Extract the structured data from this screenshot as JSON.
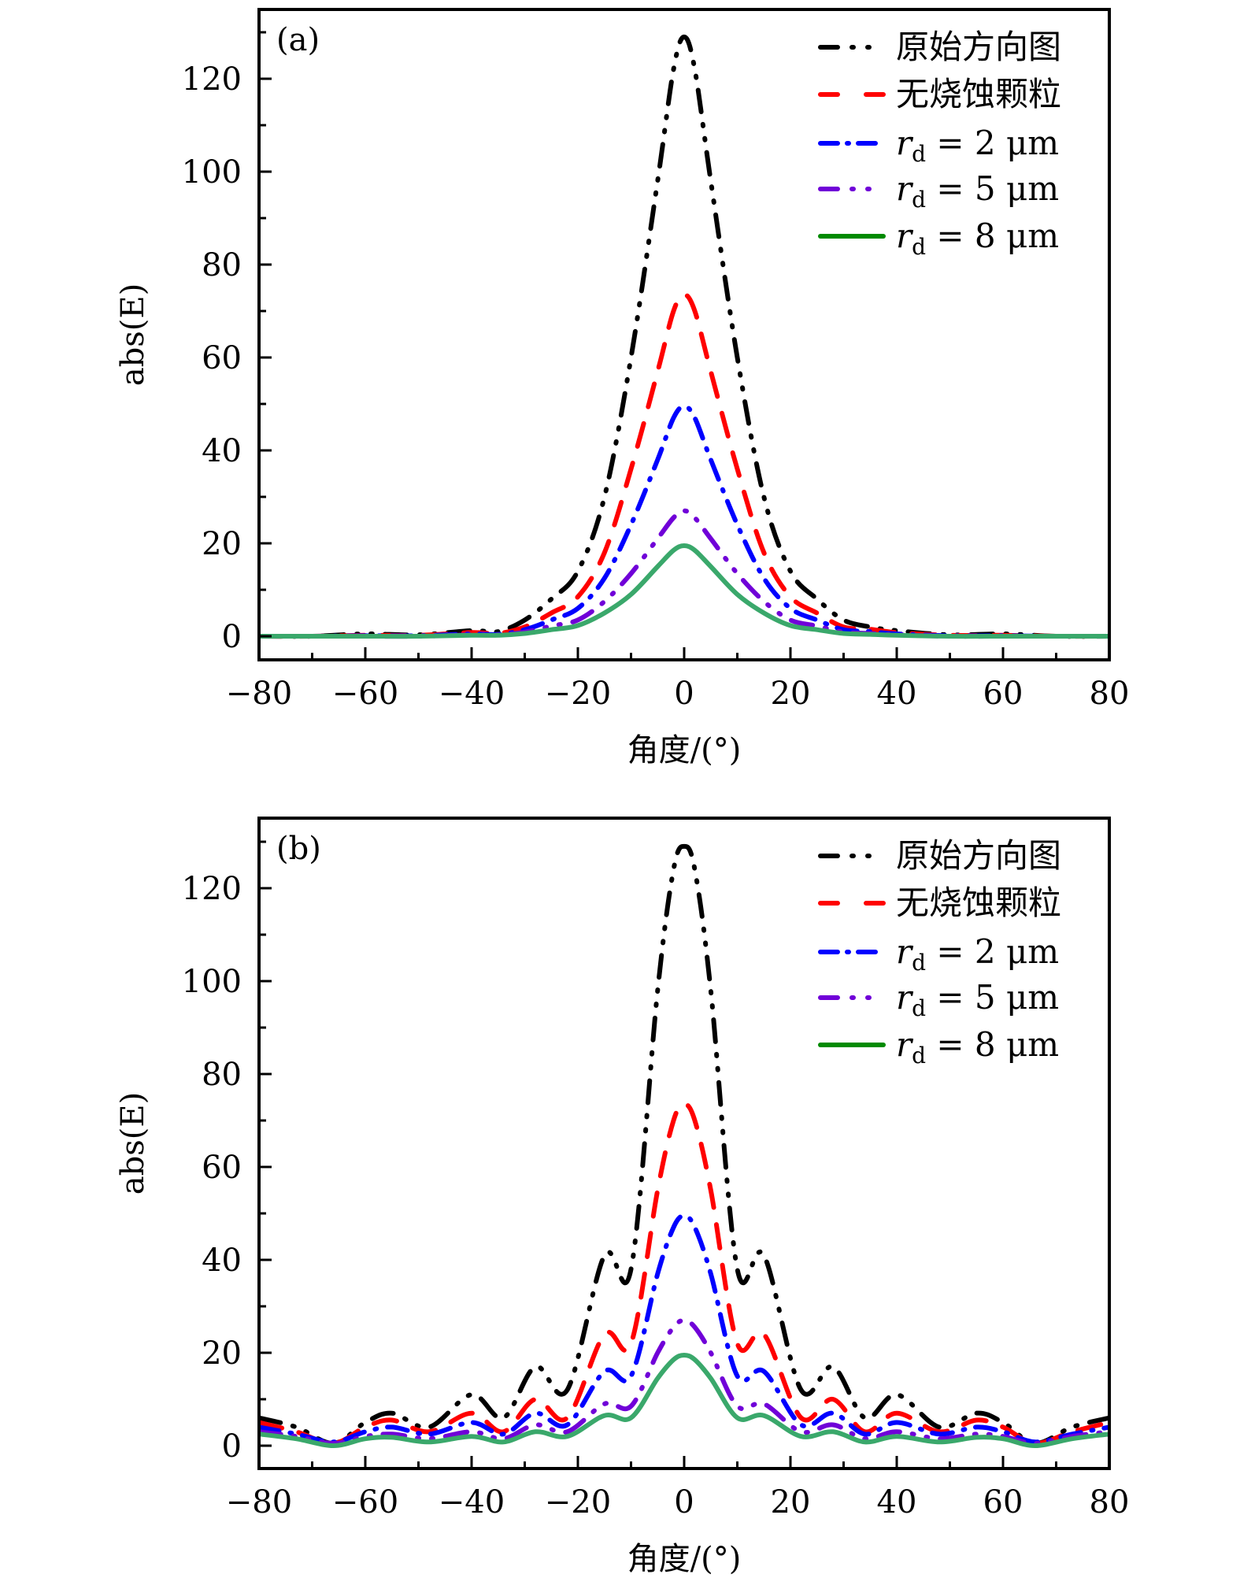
{
  "chart_data": [
    {
      "type": "line",
      "panel_label": "(a)",
      "xlabel": "角度/(°)",
      "ylabel": "abs(E)",
      "xlim": [
        -80,
        80
      ],
      "ylim": [
        0,
        135
      ],
      "xticks": [
        -80,
        -60,
        -40,
        -20,
        0,
        20,
        40,
        60,
        80
      ],
      "xtick_labels": [
        "−80",
        "−60",
        "−40",
        "−20",
        "0",
        "20",
        "40",
        "60",
        "80"
      ],
      "yticks": [
        0,
        20,
        40,
        60,
        80,
        100,
        120
      ],
      "ytick_labels": [
        "0",
        "20",
        "40",
        "60",
        "80",
        "100",
        "120"
      ],
      "legend_position": "top-right",
      "x": [
        -80,
        -70,
        -60,
        -50,
        -40,
        -35,
        -30,
        -25,
        -20,
        -15,
        -10,
        -5,
        -2,
        0,
        2,
        5,
        10,
        15,
        20,
        25,
        30,
        35,
        40,
        50,
        60,
        70,
        80
      ],
      "series": [
        {
          "name": "原始方向图",
          "color": "#000000",
          "dash": "dash-dot-dot",
          "values": [
            0,
            0,
            0.5,
            0.3,
            1.2,
            1.0,
            3.5,
            8,
            14,
            30,
            60,
            98,
            122,
            129,
            122,
            98,
            60,
            30,
            14,
            8,
            3.5,
            2.0,
            1.2,
            0.3,
            0.5,
            0,
            0
          ]
        },
        {
          "name": "无烧蚀颗粒",
          "color": "#ff0000",
          "dash": "dash",
          "values": [
            0,
            0,
            0.2,
            0.2,
            0.8,
            0.6,
            2.0,
            5,
            8.5,
            18,
            36,
            57,
            70,
            73.5,
            70,
            57,
            36,
            18,
            8.5,
            5,
            2.0,
            1.5,
            0.8,
            0.2,
            0.2,
            0,
            0
          ]
        },
        {
          "name": "r_d = 2 μm",
          "color": "#0000ff",
          "dash": "dash-dot",
          "values": [
            0,
            0,
            0.1,
            0.1,
            0.5,
            0.4,
            1.4,
            3.5,
            6,
            12.5,
            24,
            38,
            47,
            49.5,
            47,
            38,
            24,
            12.5,
            6,
            3.5,
            1.4,
            1.0,
            0.5,
            0.1,
            0.1,
            0,
            0
          ]
        },
        {
          "name": "r_d = 5 μm",
          "color": "#7000d8",
          "dash": "dash-dot-dot",
          "values": [
            0,
            0,
            0,
            0,
            0.3,
            0.3,
            0.9,
            2.2,
            3.5,
            7.5,
            13.5,
            21,
            25.5,
            27,
            25.5,
            21,
            13.5,
            7.5,
            3.5,
            2.2,
            0.9,
            0.6,
            0.3,
            0,
            0,
            0,
            0
          ]
        },
        {
          "name": "r_d = 8 μm",
          "color": "#3aa86b",
          "dash": "solid",
          "values": [
            0,
            0,
            0,
            0,
            0.2,
            0.2,
            0.6,
            1.4,
            2.3,
            5,
            9,
            15,
            18.5,
            19.5,
            18.5,
            15,
            9,
            5,
            2.3,
            1.4,
            0.6,
            0.4,
            0.2,
            0,
            0,
            0,
            0
          ]
        }
      ]
    },
    {
      "type": "line",
      "panel_label": "(b)",
      "xlabel": "角度/(°)",
      "ylabel": "abs(E)",
      "xlim": [
        -80,
        80
      ],
      "ylim": [
        0,
        135
      ],
      "xticks": [
        -80,
        -60,
        -40,
        -20,
        0,
        20,
        40,
        60,
        80
      ],
      "xtick_labels": [
        "−80",
        "−60",
        "−40",
        "−20",
        "0",
        "20",
        "40",
        "60",
        "80"
      ],
      "yticks": [
        0,
        20,
        40,
        60,
        80,
        100,
        120
      ],
      "ytick_labels": [
        "0",
        "20",
        "40",
        "60",
        "80",
        "100",
        "120"
      ],
      "legend_position": "top-right",
      "x": [
        -80,
        -73,
        -66,
        -60,
        -55,
        -48,
        -40,
        -34,
        -28,
        -22,
        -15,
        -10,
        -5,
        -2,
        0,
        2,
        5,
        10,
        15,
        22,
        28,
        34,
        40,
        48,
        55,
        60,
        66,
        73,
        80
      ],
      "series": [
        {
          "name": "原始方向图",
          "color": "#000000",
          "dash": "dash-dot-dot",
          "values": [
            6,
            4,
            0.5,
            5,
            7,
            4,
            11,
            6,
            17,
            12,
            41,
            38,
            98,
            124,
            129,
            124,
            98,
            38,
            41,
            12,
            17,
            6,
            11,
            4,
            7,
            5,
            0.5,
            4,
            6
          ]
        },
        {
          "name": "无烧蚀颗粒",
          "color": "#ff0000",
          "dash": "dash",
          "values": [
            5,
            3,
            0.5,
            4,
            5.5,
            3,
            7,
            3,
            10,
            6,
            24,
            22,
            55,
            70,
            73.5,
            70,
            55,
            22,
            24,
            6,
            10,
            3,
            7,
            3,
            5.5,
            4,
            0.5,
            3,
            5
          ]
        },
        {
          "name": "r_d = 2 μm",
          "color": "#0000ff",
          "dash": "dash-dot",
          "values": [
            4,
            2.5,
            0.8,
            3,
            4,
            2.5,
            5,
            2.5,
            7,
            4.5,
            16,
            15,
            37,
            47,
            49.5,
            47,
            37,
            15,
            16,
            4.5,
            7,
            2.5,
            5,
            2.5,
            4,
            3,
            0.8,
            2.5,
            4
          ]
        },
        {
          "name": "r_d = 5 μm",
          "color": "#7000d8",
          "dash": "dash-dot-dot",
          "values": [
            3,
            2,
            0.5,
            2,
            2.5,
            1.5,
            3,
            1.5,
            4.5,
            3,
            9,
            8.5,
            20,
            25.5,
            27,
            25.5,
            20,
            8.5,
            9,
            3,
            4.5,
            1.5,
            3,
            1.5,
            2.5,
            2,
            0.5,
            2,
            3
          ]
        },
        {
          "name": "r_d = 8 μm",
          "color": "#3aa86b",
          "dash": "solid",
          "values": [
            2.5,
            1.5,
            0,
            1.5,
            1.8,
            0.8,
            2,
            0.8,
            3,
            2,
            6.5,
            6,
            14.5,
            18.5,
            19.5,
            18.5,
            14.5,
            6,
            6.5,
            2,
            3,
            0.8,
            2,
            0.8,
            1.8,
            1.5,
            0,
            1.5,
            2.5
          ]
        }
      ]
    }
  ],
  "legend": {
    "items": [
      {
        "main": "原始方向图",
        "sub": "",
        "value": ""
      },
      {
        "main": "无烧蚀颗粒",
        "sub": "",
        "value": ""
      },
      {
        "main": "r",
        "sub": "d",
        "value": " = 2 μm"
      },
      {
        "main": "r",
        "sub": "d",
        "value": " = 5 μm"
      },
      {
        "main": "r",
        "sub": "d",
        "value": " = 8 μm"
      }
    ],
    "swatch_colors": [
      "#000000",
      "#ff0000",
      "#0000ff",
      "#7000d8",
      "#008a00"
    ]
  }
}
